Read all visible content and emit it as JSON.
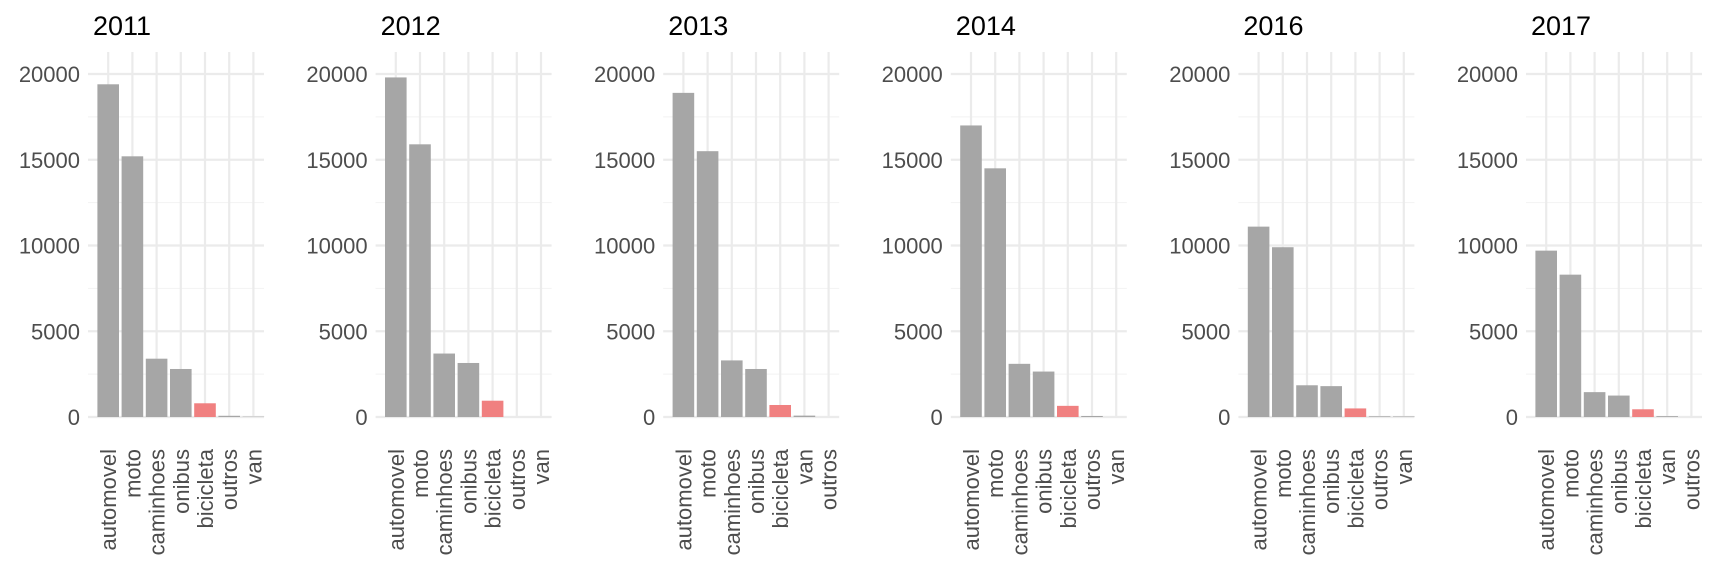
{
  "chart_data": {
    "type": "bar",
    "layout": "facets",
    "ylim": [
      0,
      20000
    ],
    "y_ticks": [
      0,
      5000,
      10000,
      15000,
      20000
    ],
    "grid": true,
    "colors": {
      "default": "#a6a6a6",
      "highlight": "#f08080",
      "grid_major": "#ebebeb",
      "grid_minor": "#f2f2f2",
      "text": "#4d4d4d"
    },
    "highlight_category": "bicicleta",
    "panels": [
      {
        "title": "2011",
        "categories": [
          "automovel",
          "moto",
          "caminhoes",
          "onibus",
          "bicicleta",
          "outros",
          "van"
        ],
        "values": [
          19400,
          15200,
          3400,
          2800,
          800,
          70,
          20
        ]
      },
      {
        "title": "2012",
        "categories": [
          "automovel",
          "moto",
          "caminhoes",
          "onibus",
          "bicicleta",
          "outros",
          "van"
        ],
        "values": [
          19800,
          15900,
          3700,
          3150,
          950,
          0,
          0
        ]
      },
      {
        "title": "2013",
        "categories": [
          "automovel",
          "moto",
          "caminhoes",
          "onibus",
          "bicicleta",
          "van",
          "outros"
        ],
        "values": [
          18900,
          15500,
          3300,
          2800,
          700,
          80,
          0
        ]
      },
      {
        "title": "2014",
        "categories": [
          "automovel",
          "moto",
          "caminhoes",
          "onibus",
          "bicicleta",
          "outros",
          "van"
        ],
        "values": [
          17000,
          14500,
          3100,
          2650,
          650,
          60,
          0
        ]
      },
      {
        "title": "2016",
        "categories": [
          "automovel",
          "moto",
          "caminhoes",
          "onibus",
          "bicicleta",
          "outros",
          "van"
        ],
        "values": [
          11100,
          9900,
          1850,
          1800,
          500,
          40,
          30
        ]
      },
      {
        "title": "2017",
        "categories": [
          "automovel",
          "moto",
          "caminhoes",
          "onibus",
          "bicicleta",
          "van",
          "outros"
        ],
        "values": [
          9700,
          8300,
          1450,
          1250,
          450,
          50,
          0
        ]
      }
    ]
  }
}
